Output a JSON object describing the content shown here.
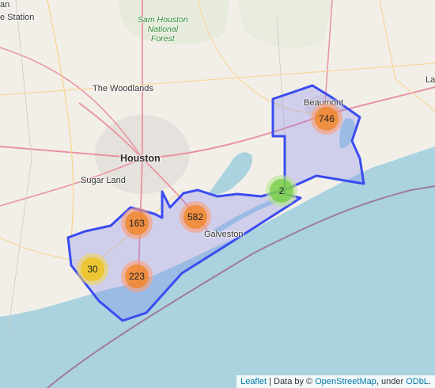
{
  "map": {
    "place_labels": [
      {
        "id": "station",
        "text": "e Station",
        "cls": ""
      },
      {
        "id": "woodlands",
        "text": "The Woodlands",
        "cls": ""
      },
      {
        "id": "houston",
        "text": "Houston",
        "cls": "big"
      },
      {
        "id": "sugarland",
        "text": "Sugar Land",
        "cls": ""
      },
      {
        "id": "galveston",
        "text": "Galveston",
        "cls": ""
      },
      {
        "id": "beaumont",
        "text": "Beaumont",
        "cls": ""
      },
      {
        "id": "lake",
        "text": "La",
        "cls": ""
      },
      {
        "id": "an",
        "text": "an",
        "cls": ""
      }
    ],
    "park_label": {
      "line1": "Sam Houston",
      "line2": "National",
      "line3": "Forest"
    },
    "clusters": [
      {
        "id": "beaumont",
        "count": "746",
        "size": "large"
      },
      {
        "id": "bolivar",
        "count": "2",
        "size": "small"
      },
      {
        "id": "galveston",
        "count": "582",
        "size": "large"
      },
      {
        "id": "brazoria",
        "count": "163",
        "size": "large"
      },
      {
        "id": "freeport",
        "count": "223",
        "size": "large"
      },
      {
        "id": "west",
        "count": "30",
        "size": "medium"
      }
    ],
    "colors": {
      "land": "#f2efe9",
      "water": "#aad3df",
      "region_fill": "#7b7ef0",
      "region_stroke": "#3a4cf0",
      "boundary": "#a0799f",
      "highway": "#e892a2",
      "road": "#f9d38c"
    }
  },
  "attribution": {
    "leaflet": "Leaflet",
    "sep": " | Data by © ",
    "osm": "OpenStreetMap",
    "under": ", under ",
    "odbl": "ODbL",
    "end": "."
  }
}
